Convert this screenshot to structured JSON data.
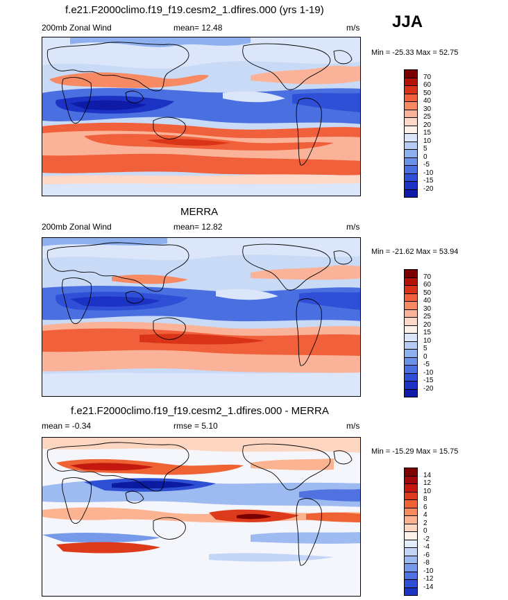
{
  "season": "JJA",
  "colors": {
    "pos": [
      "#7a0000",
      "#b51206",
      "#d93418",
      "#f0603a",
      "#f78a63",
      "#fab398",
      "#fdd8c7",
      "#fdf2ea"
    ],
    "neg": [
      "#d9e6fa",
      "#b6ccf5",
      "#8fb0ef",
      "#6b91e8",
      "#4a6fe0",
      "#2f4fd6",
      "#1c32c4",
      "#0e1ba6",
      "#060c7a"
    ],
    "dpos": [
      "#7a0000",
      "#a1080a",
      "#c3190f",
      "#dd3a1c",
      "#ee6234",
      "#f68b5d",
      "#fbb392",
      "#fdd6c2",
      "#fef1e8"
    ],
    "dneg": [
      "#e2ecfb",
      "#c3d5f7",
      "#9dbaf1",
      "#769ae9",
      "#4f72e0",
      "#2e4fd4",
      "#1a33c0",
      "#0c1aa0",
      "#050c78"
    ]
  },
  "panels": [
    {
      "title": "f.e21.F2000climo.f19_f19.cesm2_1.dfires.000 (yrs 1-19)",
      "left_label": "200mb Zonal Wind",
      "center_label": "mean=  12.48",
      "units": "m/s",
      "minmax": "Min = -25.33 Max =  52.75",
      "legend": [
        "70",
        "60",
        "50",
        "40",
        "30",
        "25",
        "20",
        "15",
        "10",
        "5",
        "0",
        "-5",
        "-10",
        "-15",
        "-20"
      ]
    },
    {
      "title": "MERRA",
      "left_label": "200mb Zonal Wind",
      "center_label": "mean=  12.82",
      "units": "m/s",
      "minmax": "Min = -21.62 Max =  53.94",
      "legend": [
        "70",
        "60",
        "50",
        "40",
        "30",
        "25",
        "20",
        "15",
        "10",
        "5",
        "0",
        "-5",
        "-10",
        "-15",
        "-20"
      ]
    },
    {
      "title": "f.e21.F2000climo.f19_f19.cesm2_1.dfires.000 - MERRA",
      "left_label": "mean =  -0.34",
      "center_label": "rmse =   5.10",
      "units": "m/s",
      "minmax": "Min = -15.29 Max =  15.75",
      "legend": [
        "14",
        "12",
        "10",
        "8",
        "6",
        "4",
        "2",
        "0",
        "-2",
        "-4",
        "-6",
        "-8",
        "-10",
        "-12",
        "-14"
      ]
    }
  ]
}
